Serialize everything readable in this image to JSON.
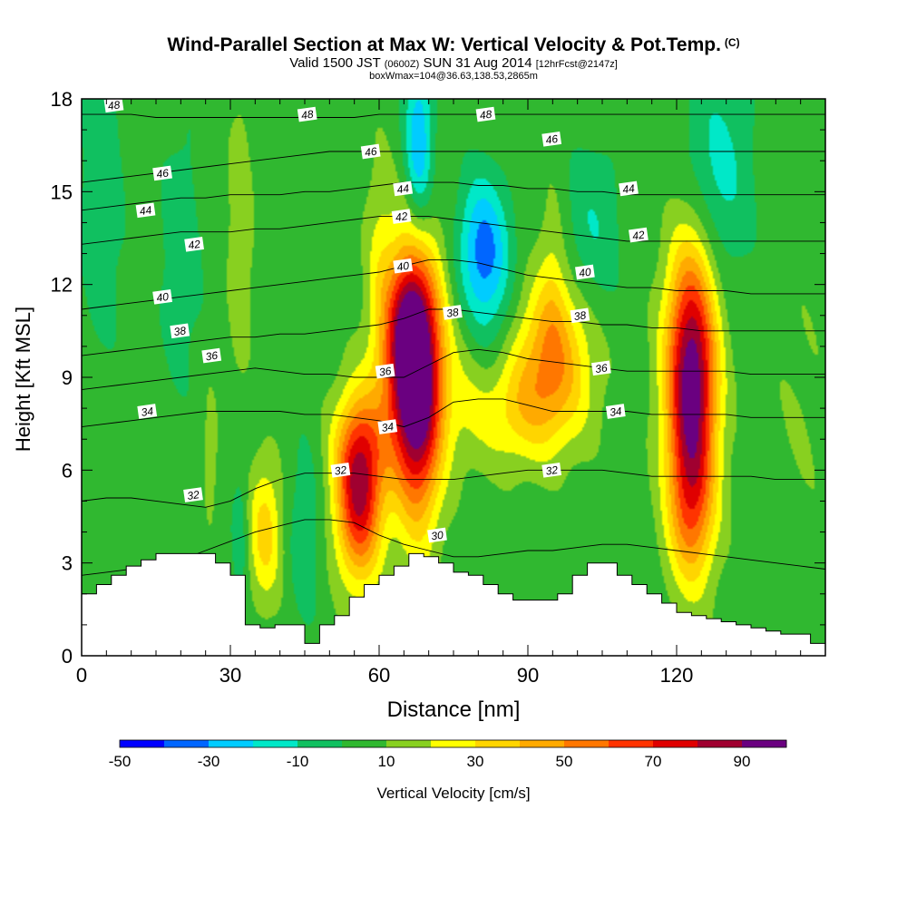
{
  "chart_data": {
    "type": "heatmap",
    "title": "Wind-Parallel Section at Max W: Vertical Velocity & Pot.Temp.",
    "title_mark": "(C)",
    "subtitle_main": "Valid 1500 JST",
    "subtitle_utc": "(0600Z)",
    "subtitle_date": "SUN 31 Aug 2014",
    "subtitle_fcst": "[12hrFcst@2147z]",
    "subtitle2": "boxWmax=104@36.63,138.53,2865m",
    "xlabel": "Distance [nm]",
    "ylabel": "Height [Kft MSL]",
    "xlim": [
      0,
      150
    ],
    "ylim": [
      0,
      18
    ],
    "xticks": [
      "0",
      "30",
      "60",
      "90",
      "120"
    ],
    "yticks": [
      "0",
      "3",
      "6",
      "9",
      "12",
      "15",
      "18"
    ],
    "colorbar": {
      "label": "Vertical Velocity [cm/s]",
      "ticks": [
        "-50",
        "-30",
        "-10",
        "10",
        "30",
        "50",
        "70",
        "90"
      ],
      "bins": [
        -50,
        -40,
        -30,
        -20,
        -10,
        0,
        10,
        20,
        30,
        40,
        50,
        60,
        70,
        80,
        90,
        100
      ],
      "colors": [
        "#0000ff",
        "#0066ff",
        "#00ccff",
        "#00e8c8",
        "#10c060",
        "#30b830",
        "#88d020",
        "#ffff00",
        "#ffd500",
        "#ffaa00",
        "#ff7700",
        "#ff3300",
        "#e00000",
        "#a00030",
        "#6a0080"
      ]
    },
    "background_color": "#30b830",
    "vertical_velocity_features": [
      {
        "x": 67,
        "z": 9.5,
        "sx": 4.2,
        "sz": 2.6,
        "w": 105
      },
      {
        "x": 66,
        "z": 10.8,
        "sx": 2.6,
        "sz": 1.4,
        "w": 20
      },
      {
        "x": 68,
        "z": 6.5,
        "sx": 3.0,
        "sz": 2.5,
        "w": 28
      },
      {
        "x": 56,
        "z": 5.2,
        "sx": 3.3,
        "sz": 1.9,
        "w": 75
      },
      {
        "x": 56,
        "z": 7.0,
        "sx": 4.0,
        "sz": 1.3,
        "w": 18
      },
      {
        "x": 123,
        "z": 9.0,
        "sx": 3.6,
        "sz": 3.0,
        "w": 95
      },
      {
        "x": 123,
        "z": 4.6,
        "sx": 3.3,
        "sz": 1.8,
        "w": 32
      },
      {
        "x": 95,
        "z": 9.8,
        "sx": 5.5,
        "sz": 1.7,
        "w": 40
      },
      {
        "x": 88,
        "z": 7.9,
        "sx": 8.0,
        "sz": 1.3,
        "w": 25
      },
      {
        "x": 37,
        "z": 4.0,
        "sx": 2.4,
        "sz": 1.6,
        "w": 30
      },
      {
        "x": 32,
        "z": 13.5,
        "sx": 1.7,
        "sz": 3.0,
        "w": 15
      },
      {
        "x": 78,
        "z": 10.0,
        "sx": 3.0,
        "sz": 2.0,
        "w": 12
      },
      {
        "x": 60,
        "z": 13.0,
        "sx": 2.0,
        "sz": 2.5,
        "w": 12
      },
      {
        "x": 95,
        "z": 12.5,
        "sx": 2.0,
        "sz": 2.0,
        "w": 12
      },
      {
        "x": 26,
        "z": 6.5,
        "sx": 1.0,
        "sz": 1.5,
        "w": 12
      },
      {
        "x": 68,
        "z": 16.5,
        "sx": 2.0,
        "sz": 2.0,
        "w": -35
      },
      {
        "x": 81,
        "z": 13.2,
        "sx": 3.5,
        "sz": 1.6,
        "w": -35
      },
      {
        "x": 80,
        "z": 11.0,
        "sx": 5.0,
        "sz": 2.0,
        "w": -15
      },
      {
        "x": 103,
        "z": 13.7,
        "sx": 4.0,
        "sz": 2.0,
        "w": -15
      },
      {
        "x": 128,
        "z": 15.5,
        "sx": 5.0,
        "sz": 2.5,
        "w": -20
      },
      {
        "x": 4,
        "z": 15.0,
        "sx": 3.0,
        "sz": 3.5,
        "w": -14
      },
      {
        "x": 20,
        "z": 13.0,
        "sx": 3.0,
        "sz": 3.0,
        "w": -12
      },
      {
        "x": 45,
        "z": 4.0,
        "sx": 2.2,
        "sz": 2.0,
        "w": -14
      },
      {
        "x": 32,
        "z": 4.0,
        "sx": 1.2,
        "sz": 1.6,
        "w": -13
      },
      {
        "x": 145,
        "z": 8.0,
        "sx": 5.0,
        "sz": 4.0,
        "w": 5
      }
    ],
    "terrain": {
      "x": [
        0,
        3,
        6,
        9,
        12,
        15,
        18,
        21,
        24,
        27,
        30,
        33,
        36,
        39,
        42,
        45,
        48,
        51,
        54,
        57,
        60,
        63,
        66,
        69,
        72,
        75,
        78,
        81,
        84,
        87,
        90,
        93,
        96,
        99,
        102,
        105,
        108,
        111,
        114,
        117,
        120,
        123,
        126,
        129,
        132,
        135,
        138,
        141,
        144,
        147,
        150
      ],
      "z": [
        2.0,
        2.3,
        2.6,
        2.9,
        3.1,
        3.3,
        3.3,
        3.3,
        3.3,
        3.0,
        2.6,
        1.0,
        0.9,
        1.0,
        1.0,
        0.4,
        1.0,
        1.3,
        1.9,
        2.3,
        2.6,
        2.9,
        3.3,
        3.2,
        3.0,
        2.7,
        2.6,
        2.3,
        2.0,
        1.8,
        1.8,
        1.8,
        2.0,
        2.6,
        3.0,
        3.0,
        2.6,
        2.3,
        2.0,
        1.7,
        1.4,
        1.3,
        1.2,
        1.1,
        1.0,
        0.9,
        0.8,
        0.7,
        0.7,
        0.4,
        0.4
      ]
    },
    "theta_contours": [
      {
        "label": "30",
        "z": [
          2.6,
          2.7,
          2.8,
          2.9,
          3.1,
          3.4,
          3.7,
          4.0,
          4.2,
          4.4,
          4.4,
          4.3,
          3.9,
          3.6,
          3.4,
          3.2,
          3.2,
          3.3,
          3.4,
          3.4,
          3.5,
          3.6,
          3.6,
          3.5,
          3.4,
          3.3,
          3.2,
          3.1,
          3.0,
          2.9,
          2.8
        ],
        "label_x": 71
      },
      {
        "label": "32",
        "z": [
          5.0,
          5.1,
          5.1,
          5.0,
          4.9,
          4.8,
          5.0,
          5.4,
          5.7,
          5.9,
          5.9,
          5.9,
          5.8,
          5.7,
          5.7,
          5.7,
          5.8,
          5.9,
          6.0,
          6.0,
          6.0,
          6.0,
          5.9,
          5.8,
          5.8,
          5.8,
          5.8,
          5.8,
          5.7,
          5.7,
          5.7
        ],
        "label_x": 51
      },
      {
        "label": "34",
        "z": [
          7.4,
          7.5,
          7.6,
          7.7,
          7.8,
          7.9,
          7.9,
          7.9,
          7.9,
          7.8,
          7.8,
          7.7,
          7.6,
          7.4,
          7.7,
          8.2,
          8.3,
          8.3,
          8.1,
          7.9,
          7.9,
          7.9,
          7.9,
          7.8,
          7.8,
          7.8,
          7.8,
          7.7,
          7.7,
          7.7,
          7.7
        ],
        "label_x": 62
      },
      {
        "label": "36",
        "z": [
          8.6,
          8.7,
          8.8,
          8.9,
          9.0,
          9.1,
          9.2,
          9.3,
          9.2,
          9.1,
          9.1,
          9.0,
          9.0,
          9.0,
          9.4,
          9.8,
          9.9,
          9.8,
          9.6,
          9.5,
          9.4,
          9.3,
          9.2,
          9.2,
          9.2,
          9.2,
          9.2,
          9.1,
          9.1,
          9.1,
          9.1
        ],
        "label_x": 60
      },
      {
        "label": "38",
        "z": [
          9.7,
          9.8,
          9.9,
          10.0,
          10.1,
          10.2,
          10.3,
          10.3,
          10.4,
          10.4,
          10.5,
          10.6,
          10.7,
          10.9,
          11.2,
          11.2,
          11.1,
          11.0,
          10.9,
          10.8,
          10.8,
          10.7,
          10.7,
          10.6,
          10.6,
          10.5,
          10.5,
          10.5,
          10.5,
          10.5,
          10.5
        ],
        "label_x": 75
      },
      {
        "label": "40",
        "z": [
          11.2,
          11.3,
          11.4,
          11.5,
          11.6,
          11.7,
          11.8,
          11.9,
          12.0,
          12.1,
          12.2,
          12.3,
          12.4,
          12.6,
          12.8,
          12.8,
          12.7,
          12.5,
          12.3,
          12.2,
          12.1,
          12.0,
          11.9,
          11.9,
          11.8,
          11.8,
          11.8,
          11.7,
          11.7,
          11.7,
          11.7
        ],
        "label_x": 65
      },
      {
        "label": "42",
        "z": [
          13.3,
          13.4,
          13.5,
          13.6,
          13.7,
          13.7,
          13.7,
          13.8,
          13.8,
          13.9,
          14.0,
          14.1,
          14.2,
          14.2,
          14.2,
          14.1,
          14.0,
          13.9,
          13.8,
          13.7,
          13.6,
          13.5,
          13.4,
          13.4,
          13.4,
          13.4,
          13.4,
          13.4,
          13.4,
          13.4,
          13.4
        ],
        "label_x": 65
      },
      {
        "label": "44",
        "z": [
          14.4,
          14.5,
          14.6,
          14.7,
          14.8,
          14.8,
          14.9,
          14.9,
          14.9,
          15.0,
          15.0,
          15.1,
          15.2,
          15.3,
          15.3,
          15.3,
          15.2,
          15.2,
          15.1,
          15.1,
          15.0,
          15.0,
          14.9,
          14.9,
          14.9,
          14.9,
          14.9,
          14.9,
          14.9,
          14.9,
          14.9
        ],
        "label_x": 65
      },
      {
        "label": "46",
        "z": [
          15.3,
          15.4,
          15.5,
          15.6,
          15.7,
          15.8,
          15.9,
          16.0,
          16.1,
          16.2,
          16.3,
          16.3,
          16.3,
          16.3,
          16.3,
          16.3,
          16.3,
          16.3,
          16.3,
          16.3,
          16.3,
          16.3,
          16.3,
          16.3,
          16.3,
          16.3,
          16.3,
          16.3,
          16.3,
          16.3,
          16.3
        ],
        "label_x": 58
      },
      {
        "label": "48",
        "z": [
          17.5,
          17.5,
          17.5,
          17.4,
          17.4,
          17.4,
          17.4,
          17.4,
          17.4,
          17.4,
          17.4,
          17.4,
          17.5,
          17.5,
          17.5,
          17.5,
          17.5,
          17.5,
          17.5,
          17.5,
          17.5,
          17.5,
          17.5,
          17.5,
          17.5,
          17.5,
          17.5,
          17.5,
          17.5,
          17.5,
          17.5
        ],
        "label_x": 45
      }
    ],
    "contour_labels": [
      {
        "text": "48",
        "x": 6.5,
        "z": 17.8
      },
      {
        "text": "48",
        "x": 45.5,
        "z": 17.5
      },
      {
        "text": "48",
        "x": 81.5,
        "z": 17.5
      },
      {
        "text": "46",
        "x": 16.3,
        "z": 15.6
      },
      {
        "text": "46",
        "x": 58.3,
        "z": 16.3
      },
      {
        "text": "46",
        "x": 94.8,
        "z": 16.7
      },
      {
        "text": "44",
        "x": 12.9,
        "z": 14.4
      },
      {
        "text": "44",
        "x": 64.8,
        "z": 15.1
      },
      {
        "text": "44",
        "x": 110.3,
        "z": 15.1
      },
      {
        "text": "42",
        "x": 22.7,
        "z": 13.3
      },
      {
        "text": "42",
        "x": 64.5,
        "z": 14.2
      },
      {
        "text": "42",
        "x": 112.3,
        "z": 13.6
      },
      {
        "text": "40",
        "x": 16.3,
        "z": 11.6
      },
      {
        "text": "40",
        "x": 64.8,
        "z": 12.6
      },
      {
        "text": "40",
        "x": 101.5,
        "z": 12.4
      },
      {
        "text": "38",
        "x": 19.8,
        "z": 10.5
      },
      {
        "text": "38",
        "x": 74.8,
        "z": 11.1
      },
      {
        "text": "38",
        "x": 100.5,
        "z": 11.0
      },
      {
        "text": "36",
        "x": 26.2,
        "z": 9.7
      },
      {
        "text": "36",
        "x": 61.2,
        "z": 9.2
      },
      {
        "text": "36",
        "x": 104.8,
        "z": 9.3
      },
      {
        "text": "34",
        "x": 13.2,
        "z": 7.9
      },
      {
        "text": "34",
        "x": 61.7,
        "z": 7.4
      },
      {
        "text": "34",
        "x": 107.7,
        "z": 7.9
      },
      {
        "text": "32",
        "x": 22.5,
        "z": 5.2
      },
      {
        "text": "32",
        "x": 52.2,
        "z": 6.0
      },
      {
        "text": "32",
        "x": 94.8,
        "z": 6.0
      },
      {
        "text": "30",
        "x": 71.7,
        "z": 3.9
      }
    ]
  }
}
